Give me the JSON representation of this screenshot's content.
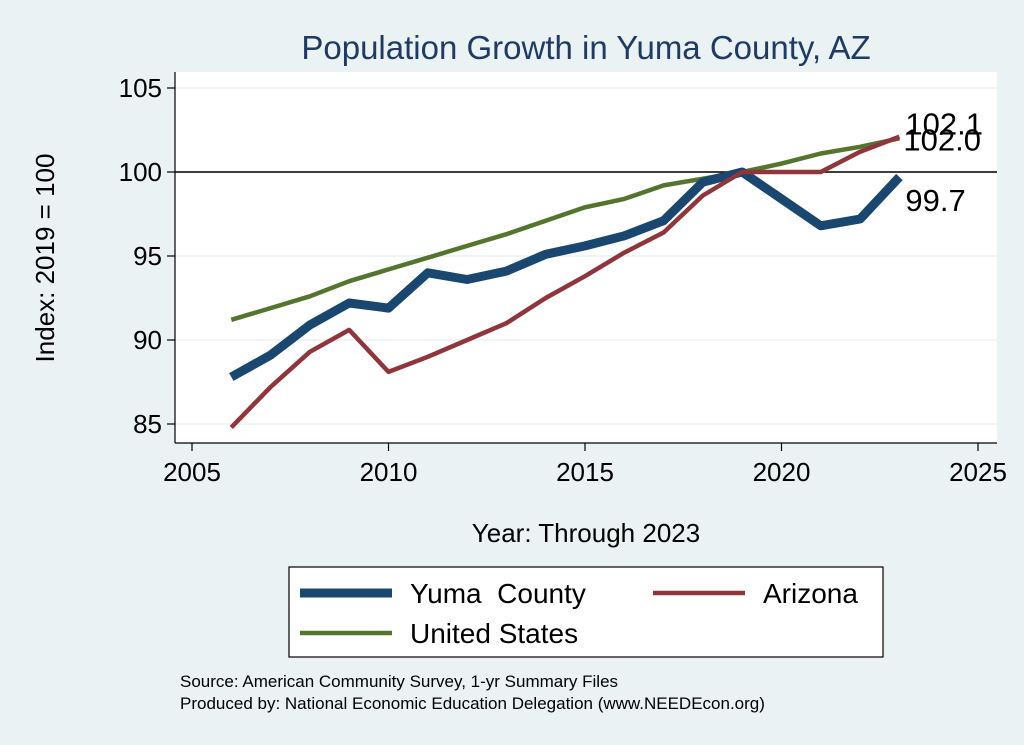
{
  "chart_data": {
    "type": "line",
    "title": "Population Growth in Yuma County, AZ",
    "xlabel": "Year: Through 2023",
    "ylabel": "Index: 2019 = 100",
    "xlim": [
      2005,
      2025
    ],
    "ylim": [
      84,
      105.5
    ],
    "xticks": [
      2005,
      2010,
      2015,
      2020,
      2025
    ],
    "yticks": [
      85,
      90,
      95,
      100,
      105
    ],
    "reference_line": 100,
    "x": [
      2006,
      2007,
      2008,
      2009,
      2010,
      2011,
      2012,
      2013,
      2014,
      2015,
      2016,
      2017,
      2018,
      2019,
      2020,
      2021,
      2022,
      2023
    ],
    "series": [
      {
        "name": "Yuma  County",
        "color": "#1a476f",
        "width": 9,
        "values": [
          87.8,
          89.1,
          90.9,
          92.2,
          91.9,
          94.0,
          93.6,
          94.1,
          95.1,
          95.6,
          96.2,
          97.1,
          99.4,
          100.0,
          98.4,
          96.8,
          97.2,
          99.7
        ],
        "end_label": "99.7"
      },
      {
        "name": "Arizona",
        "color": "#90353b",
        "width": 4.5,
        "values": [
          84.8,
          87.2,
          89.3,
          90.6,
          88.1,
          89.0,
          90.0,
          91.0,
          92.5,
          93.8,
          95.2,
          96.4,
          98.6,
          100.0,
          100.0,
          100.0,
          101.2,
          102.1
        ],
        "end_label": "102.1"
      },
      {
        "name": "United States",
        "color": "#55752f",
        "width": 4.5,
        "values": [
          91.2,
          91.9,
          92.6,
          93.5,
          94.2,
          94.9,
          95.6,
          96.3,
          97.1,
          97.9,
          98.4,
          99.2,
          99.6,
          100.0,
          100.5,
          101.1,
          101.5,
          102.0
        ],
        "end_label": "102.0"
      }
    ],
    "legend": {
      "placement": "bottom"
    }
  },
  "footer": {
    "source": "Source: American Community Survey, 1-yr Summary Files",
    "produced_by": "Produced by: National Economic Education Delegation (www.NEEDEcon.org)"
  }
}
